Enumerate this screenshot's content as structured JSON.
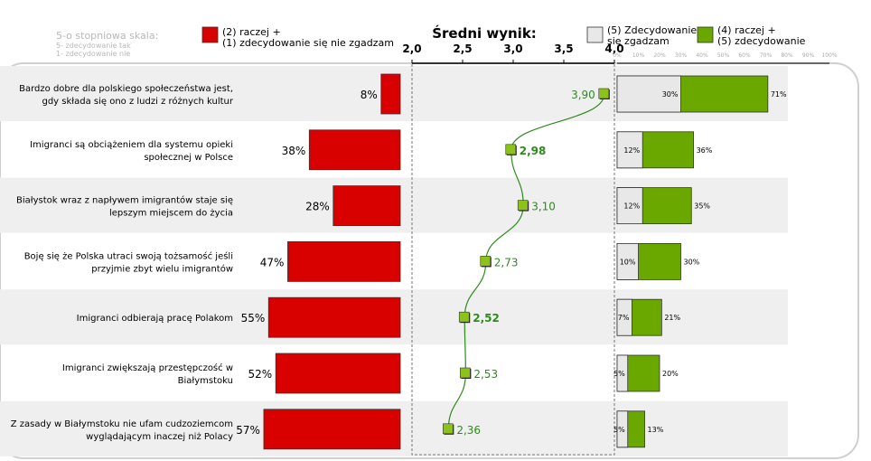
{
  "header": {
    "scale_title": "5-o stopniowa skala:",
    "scale_line1": "5- zdecydowanie tak",
    "scale_line2": "1- zdecydowanie nie"
  },
  "legend": {
    "disagree_line1": "(2) raczej +",
    "disagree_line2": "(1) zdecydowanie się nie zgadzam",
    "neutral_line1": "(5) Zdecydowanie",
    "neutral_line2": "się zgadzam",
    "agree_line1": "(4) raczej +",
    "agree_line2": "(5) zdecydowanie"
  },
  "colors": {
    "disagree": "#d90000",
    "agree": "#6aa800",
    "neutral": "#e8e8e8",
    "marker": "#8cc21a",
    "line": "#2f8a1e",
    "value_text": "#2f8a1e",
    "row_band": "#efefef"
  },
  "chart_data": {
    "type": "bar",
    "title": "Średni wynik:",
    "categories": [
      "Bardzo dobre dla polskiego społeczeństwa jest, gdy składa się ono z ludzi z różnych kultur",
      "Imigranci są obciążeniem dla systemu opieki społecznej w Polsce",
      "Białystok wraz z napływem imigrantów staje się lepszym miejscem do życia",
      "Boję się że Polska utraci swoją tożsamość jeśli przyjmie zbyt wielu imigrantów",
      "Imigranci odbierają pracę Polakom",
      "Imigranci zwiększają przestępczość w Białymstoku",
      "Z zasady w Białymstoku nie ufam cudzoziemcom wyglądającym inaczej niż Polacy"
    ],
    "category_lines": [
      [
        "Bardzo dobre dla polskiego społeczeństwa jest,",
        "gdy składa się ono z ludzi z różnych kultur"
      ],
      [
        "Imigranci są obciążeniem dla systemu opieki",
        "społecznej w Polsce"
      ],
      [
        "Białystok wraz z napływem imigrantów staje się",
        "lepszym miejscem do życia"
      ],
      [
        "Boję się że Polska utraci swoją tożsamość jeśli",
        "przyjmie zbyt wielu imigrantów"
      ],
      [
        "Imigranci odbierają pracę Polakom"
      ],
      [
        "Imigranci zwiększają przestępczość w",
        "Białymstoku"
      ],
      [
        "Z zasady w Białymstoku nie ufam cudzoziemcom",
        "wyglądającym inaczej niż Polacy"
      ]
    ],
    "series": [
      {
        "name": "(2) raczej + (1) zdecydowanie się nie zgadzam",
        "values": [
          8,
          38,
          28,
          47,
          55,
          52,
          57
        ],
        "labels": [
          "8%",
          "38%",
          "28%",
          "47%",
          "55%",
          "52%",
          "57%"
        ]
      },
      {
        "name": "(5) Zdecydowanie się zgadzam",
        "values": [
          30,
          12,
          12,
          10,
          7,
          5,
          5
        ],
        "labels": [
          "30%",
          "12%",
          "12%",
          "10%",
          "7%",
          "5%",
          "5%"
        ]
      },
      {
        "name": "(4) raczej + (5) zdecydowanie",
        "values": [
          71,
          36,
          35,
          30,
          21,
          20,
          13
        ],
        "labels": [
          "71%",
          "36%",
          "35%",
          "30%",
          "21%",
          "20%",
          "13%"
        ]
      }
    ],
    "mean": {
      "values": [
        3.9,
        2.98,
        3.1,
        2.73,
        2.52,
        2.53,
        2.36
      ],
      "labels": [
        "3,90",
        "2,98",
        "3,10",
        "2,73",
        "2,52",
        "2,53",
        "2,36"
      ],
      "bold": [
        false,
        true,
        false,
        false,
        true,
        false,
        false
      ],
      "ticks": [
        "2,0",
        "2,5",
        "3,0",
        "3,5",
        "4,0"
      ],
      "xlim": [
        2.0,
        4.0
      ]
    },
    "right_axis_ticks": [
      "0%",
      "10%",
      "20%",
      "30%",
      "40%",
      "50%",
      "60%",
      "70%",
      "80%",
      "90%",
      "100%"
    ]
  }
}
